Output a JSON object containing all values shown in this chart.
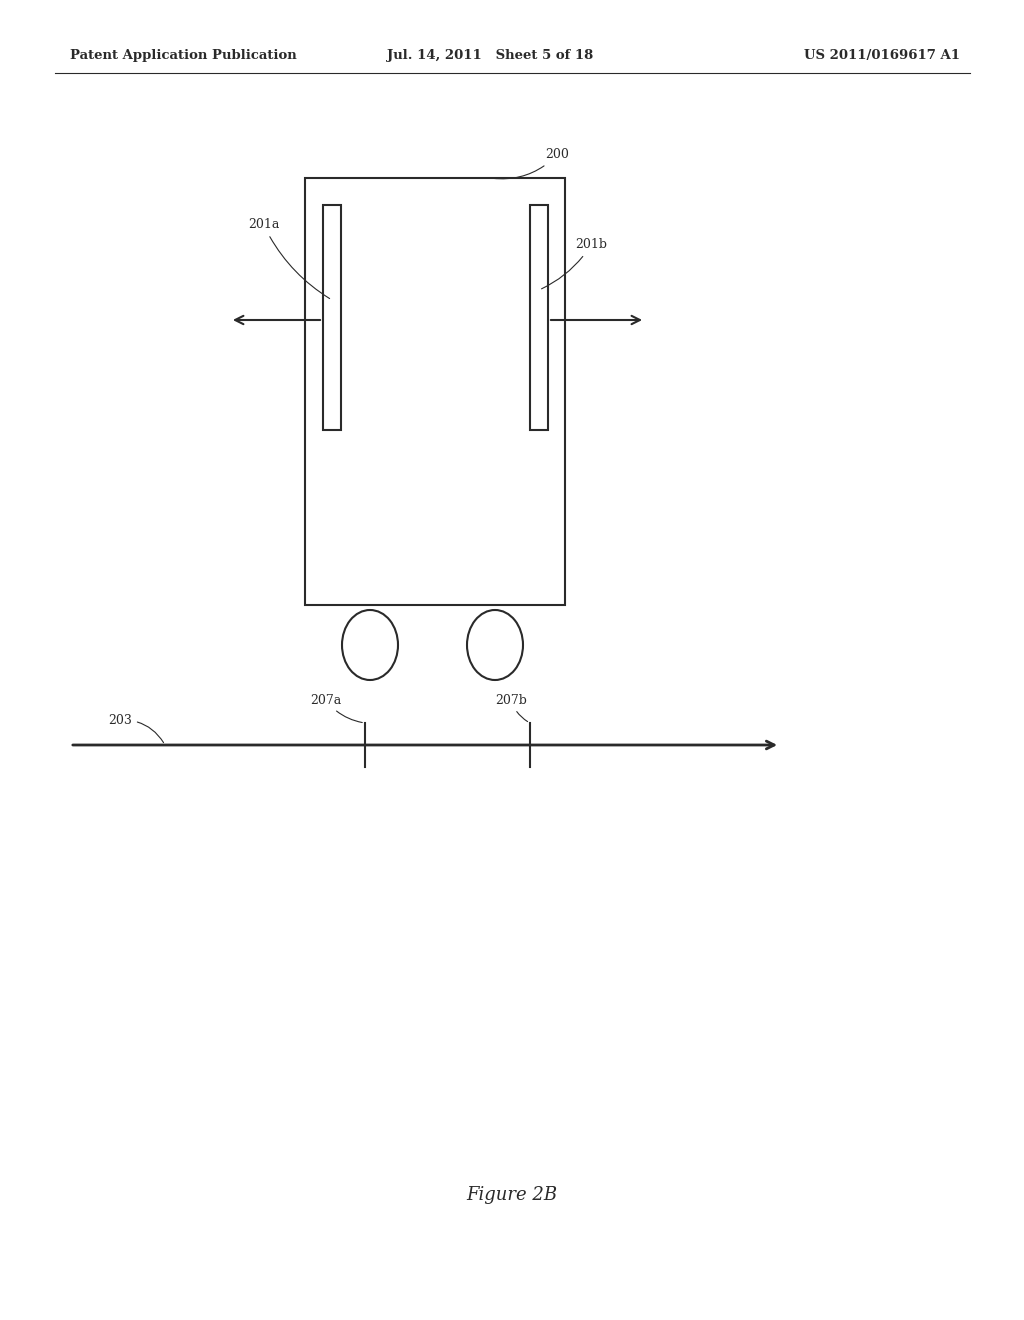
{
  "bg_color": "#ffffff",
  "header_left": "Patent Application Publication",
  "header_mid": "Jul. 14, 2011   Sheet 5 of 18",
  "header_right": "US 2011/0169617 A1",
  "figure_label": "Figure 2B",
  "line_color": "#2a2a2a",
  "text_color": "#2a2a2a",
  "font_size_header": 9.5,
  "font_size_label": 9,
  "font_size_figure": 13
}
